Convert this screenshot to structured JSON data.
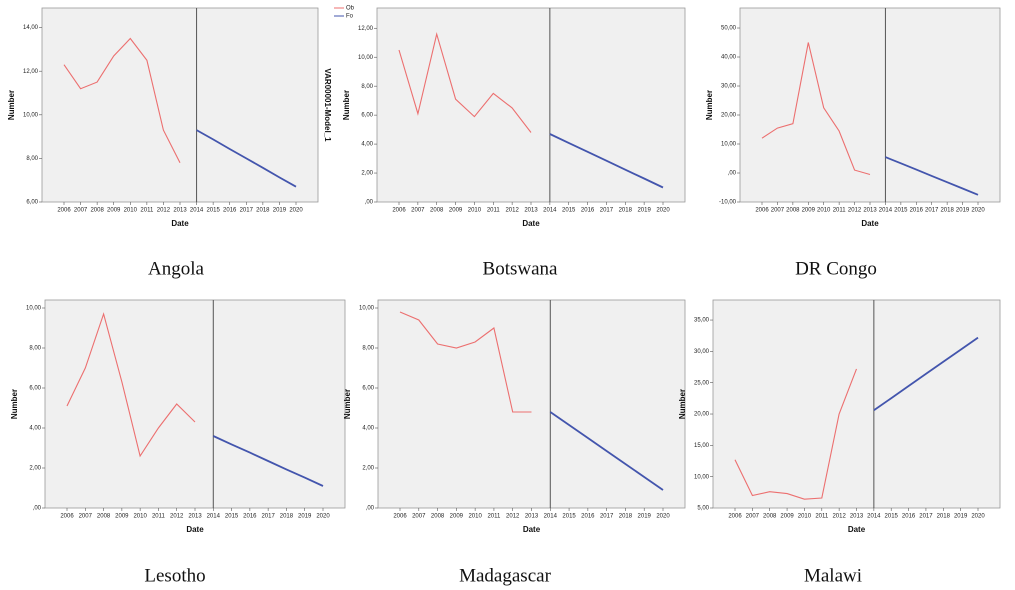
{
  "chart_data": [
    {
      "type": "line",
      "title": "Angola",
      "x_label": "Date",
      "y_label": "Number",
      "side_label": "VAR00001-Model_1",
      "categories": [
        "2006",
        "2007",
        "2008",
        "2009",
        "2010",
        "2011",
        "2012",
        "2013",
        "2014",
        "2015",
        "2016",
        "2017",
        "2018",
        "2019",
        "2020"
      ],
      "ylim": [
        6,
        14.9
      ],
      "yticks": [
        {
          "value": 6,
          "label": "6,00"
        },
        {
          "value": 8,
          "label": "8,00"
        },
        {
          "value": 10,
          "label": "10,00"
        },
        {
          "value": 12,
          "label": "12,00"
        },
        {
          "value": 14,
          "label": "14,00"
        }
      ],
      "series": [
        {
          "name": "Ob",
          "color": "#ec6f6f",
          "values": [
            12.3,
            11.2,
            11.5,
            12.7,
            13.5,
            12.5,
            9.3,
            7.8,
            null,
            null,
            null,
            null,
            null,
            null,
            null
          ]
        },
        {
          "name": "Fo",
          "color": "#4355ad",
          "values": [
            null,
            null,
            null,
            null,
            null,
            null,
            null,
            null,
            9.3,
            8.87,
            8.43,
            8.0,
            7.57,
            7.13,
            6.7
          ]
        }
      ]
    },
    {
      "type": "line",
      "title": "Botswana",
      "x_label": "Date",
      "y_label": "Number",
      "categories": [
        "2006",
        "2007",
        "2008",
        "2009",
        "2010",
        "2011",
        "2012",
        "2013",
        "2014",
        "2015",
        "2016",
        "2017",
        "2018",
        "2019",
        "2020"
      ],
      "ylim": [
        0,
        13.4
      ],
      "yticks": [
        {
          "value": 0,
          "label": ",00"
        },
        {
          "value": 2,
          "label": "2,00"
        },
        {
          "value": 4,
          "label": "4,00"
        },
        {
          "value": 6,
          "label": "6,00"
        },
        {
          "value": 8,
          "label": "8,00"
        },
        {
          "value": 10,
          "label": "10,00"
        },
        {
          "value": 12,
          "label": "12,00"
        }
      ],
      "series": [
        {
          "color": "#ec6f6f",
          "values": [
            10.5,
            6.1,
            11.6,
            7.1,
            5.9,
            7.5,
            6.5,
            4.8,
            null,
            null,
            null,
            null,
            null,
            null,
            null
          ]
        },
        {
          "color": "#4355ad",
          "values": [
            null,
            null,
            null,
            null,
            null,
            null,
            null,
            null,
            4.7,
            4.08,
            3.47,
            2.85,
            2.23,
            1.62,
            1.0
          ]
        }
      ]
    },
    {
      "type": "line",
      "title": "DR Congo",
      "x_label": "Date",
      "y_label": "Number",
      "categories": [
        "2006",
        "2007",
        "2008",
        "2009",
        "2010",
        "2011",
        "2012",
        "2013",
        "2014",
        "2015",
        "2016",
        "2017",
        "2018",
        "2019",
        "2020"
      ],
      "ylim": [
        -10,
        56.9
      ],
      "yticks": [
        {
          "value": -10,
          "label": "-10,00"
        },
        {
          "value": 0,
          "label": ",00"
        },
        {
          "value": 10,
          "label": "10,00"
        },
        {
          "value": 20,
          "label": "20,00"
        },
        {
          "value": 30,
          "label": "30,00"
        },
        {
          "value": 40,
          "label": "40,00"
        },
        {
          "value": 50,
          "label": "50,00"
        }
      ],
      "series": [
        {
          "color": "#ec6f6f",
          "values": [
            12,
            15.5,
            17,
            45,
            22.5,
            14.5,
            1,
            -0.5,
            null,
            null,
            null,
            null,
            null,
            null,
            null
          ]
        },
        {
          "color": "#4355ad",
          "values": [
            null,
            null,
            null,
            null,
            null,
            null,
            null,
            null,
            5.5,
            3.33,
            1.17,
            -1.0,
            -3.17,
            -5.33,
            -7.5
          ]
        }
      ]
    },
    {
      "type": "line",
      "title": "Lesotho",
      "x_label": "Date",
      "y_label": "Number",
      "categories": [
        "2006",
        "2007",
        "2008",
        "2009",
        "2010",
        "2011",
        "2012",
        "2013",
        "2014",
        "2015",
        "2016",
        "2017",
        "2018",
        "2019",
        "2020"
      ],
      "ylim": [
        0,
        10.4
      ],
      "yticks": [
        {
          "value": 0,
          "label": ",00"
        },
        {
          "value": 2,
          "label": "2,00"
        },
        {
          "value": 4,
          "label": "4,00"
        },
        {
          "value": 6,
          "label": "6,00"
        },
        {
          "value": 8,
          "label": "8,00"
        },
        {
          "value": 10,
          "label": "10,00"
        }
      ],
      "series": [
        {
          "color": "#ec6f6f",
          "values": [
            5.1,
            7.0,
            9.7,
            6.3,
            2.6,
            4.0,
            5.2,
            4.3,
            null,
            null,
            null,
            null,
            null,
            null,
            null
          ]
        },
        {
          "color": "#4355ad",
          "values": [
            null,
            null,
            null,
            null,
            null,
            null,
            null,
            null,
            3.6,
            3.18,
            2.77,
            2.35,
            1.93,
            1.52,
            1.1
          ]
        }
      ]
    },
    {
      "type": "line",
      "title": "Madagascar",
      "x_label": "Date",
      "y_label": "Number",
      "categories": [
        "2006",
        "2007",
        "2008",
        "2009",
        "2010",
        "2011",
        "2012",
        "2013",
        "2014",
        "2015",
        "2016",
        "2017",
        "2018",
        "2019",
        "2020"
      ],
      "ylim": [
        0,
        10.4
      ],
      "yticks": [
        {
          "value": 0,
          "label": ",00"
        },
        {
          "value": 2,
          "label": "2,00"
        },
        {
          "value": 4,
          "label": "4,00"
        },
        {
          "value": 6,
          "label": "6,00"
        },
        {
          "value": 8,
          "label": "8,00"
        },
        {
          "value": 10,
          "label": "10,00"
        }
      ],
      "series": [
        {
          "color": "#ec6f6f",
          "values": [
            9.8,
            9.4,
            8.2,
            8.0,
            8.3,
            9.0,
            4.8,
            4.8,
            null,
            null,
            null,
            null,
            null,
            null,
            null
          ]
        },
        {
          "color": "#4355ad",
          "values": [
            null,
            null,
            null,
            null,
            null,
            null,
            null,
            null,
            4.8,
            4.15,
            3.5,
            2.85,
            2.2,
            1.55,
            0.9
          ]
        }
      ]
    },
    {
      "type": "line",
      "title": "Malawi",
      "x_label": "Date",
      "y_label": "Number",
      "categories": [
        "2006",
        "2007",
        "2008",
        "2009",
        "2010",
        "2011",
        "2012",
        "2013",
        "2014",
        "2015",
        "2016",
        "2017",
        "2018",
        "2019",
        "2020"
      ],
      "ylim": [
        5,
        38.2
      ],
      "yticks": [
        {
          "value": 5,
          "label": "5,00"
        },
        {
          "value": 10,
          "label": "10,00"
        },
        {
          "value": 15,
          "label": "15,00"
        },
        {
          "value": 20,
          "label": "20,00"
        },
        {
          "value": 25,
          "label": "25,00"
        },
        {
          "value": 30,
          "label": "30,00"
        },
        {
          "value": 35,
          "label": "35,00"
        }
      ],
      "series": [
        {
          "color": "#ec6f6f",
          "values": [
            12.7,
            7,
            7.6,
            7.3,
            6.4,
            6.6,
            20,
            27.2,
            null,
            null,
            null,
            null,
            null,
            null,
            null
          ]
        },
        {
          "color": "#4355ad",
          "values": [
            null,
            null,
            null,
            null,
            null,
            null,
            null,
            null,
            20.6,
            22.53,
            24.47,
            26.4,
            28.33,
            30.27,
            32.2
          ]
        }
      ]
    }
  ]
}
